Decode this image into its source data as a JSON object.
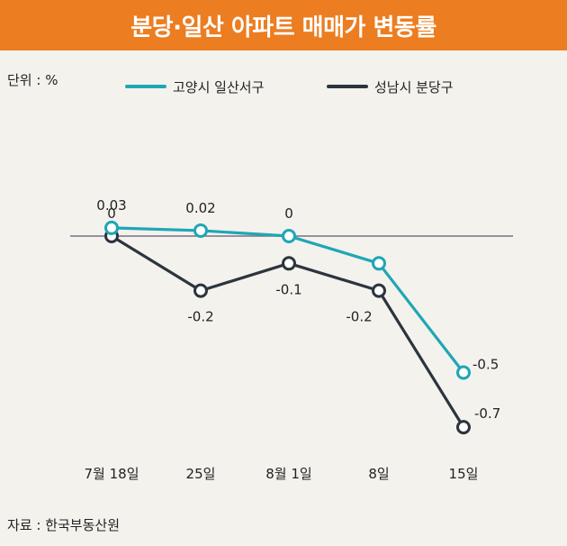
{
  "title": "분당·일산 아파트 매매가 변동률",
  "unit": "단위 : %",
  "source": "자료 : 한국부동산원",
  "colors": {
    "title_bg": "#ec7d20",
    "series_ilsan": "#1fa6b5",
    "series_bundang": "#2c353d",
    "zero_line": "#7a6f83",
    "background": "#f3f2ed"
  },
  "chart_data": {
    "type": "line",
    "title": "분당·일산 아파트 매매가 변동률",
    "xlabel": "",
    "ylabel": "",
    "categories": [
      "7월 18일",
      "25일",
      "8월 1일",
      "8일",
      "15일"
    ],
    "ylim": [
      -0.8,
      0.06
    ],
    "grid": false,
    "legend_position": "top",
    "series": [
      {
        "name": "고양시 일산서구",
        "values": [
          0.03,
          0.02,
          0,
          -0.1,
          -0.5
        ],
        "labels": [
          "0.03",
          "0.02",
          "0",
          "",
          "-0.5"
        ]
      },
      {
        "name": "성남시 분당구",
        "values": [
          0,
          -0.2,
          -0.1,
          -0.2,
          -0.7
        ],
        "labels": [
          "0",
          "-0.2",
          "-0.1",
          "-0.2",
          "-0.7"
        ]
      }
    ]
  }
}
